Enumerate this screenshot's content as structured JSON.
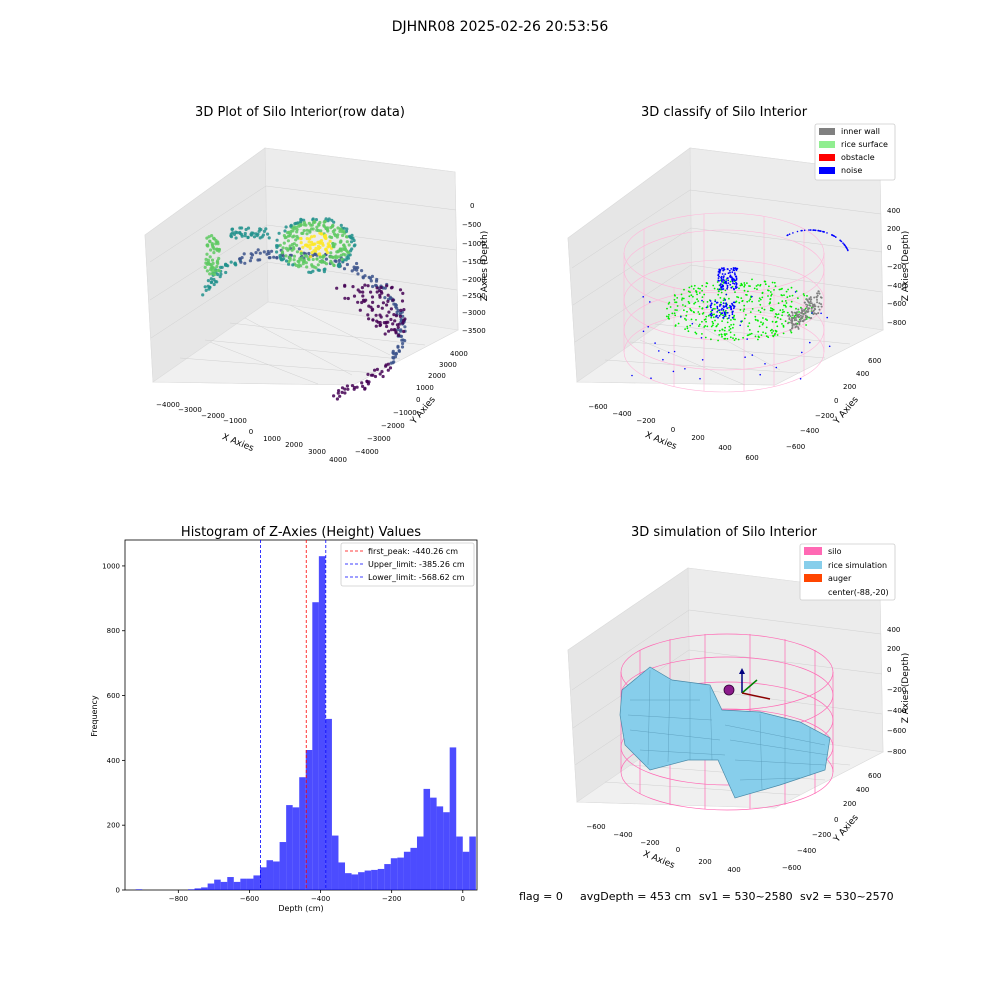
{
  "suptitle": "DJHNR08 2025-02-26 20:53:56",
  "footer": {
    "flag": "flag = 0",
    "avg_depth": "avgDepth = 453 cm",
    "sv1": "sv1 = 530~2580",
    "sv2": "sv2 = 530~2570"
  },
  "chart_data": [
    {
      "type": "scatter",
      "title": "3D Plot of Silo Interior(row data)",
      "xlabel": "X Axies",
      "ylabel": "Y Axies",
      "zlabel": "Z Axies (Depth)",
      "x_ticks": [
        "−4000",
        "−3000",
        "−2000",
        "−1000",
        "0",
        "1000",
        "2000",
        "3000",
        "4000"
      ],
      "y_ticks": [
        "−4000",
        "−3000",
        "−2000",
        "−1000",
        "0",
        "1000",
        "2000",
        "3000",
        "4000"
      ],
      "z_ticks": [
        "0",
        "−500",
        "−1000",
        "−1500",
        "−2000",
        "−2500",
        "−3000",
        "−3500"
      ],
      "xlim": [
        -4500,
        4500
      ],
      "ylim": [
        -4500,
        4500
      ],
      "zlim": [
        -3800,
        200
      ],
      "colormap": [
        "#440154",
        "#3b528b",
        "#21918c",
        "#5ec962",
        "#fde725"
      ]
    },
    {
      "type": "scatter",
      "title": "3D classify of Silo Interior",
      "xlabel": "X Axies",
      "ylabel": "Y Axies",
      "zlabel": "Z Axies (Depth)",
      "x_ticks": [
        "−600",
        "−400",
        "−200",
        "0",
        "200",
        "400",
        "600"
      ],
      "y_ticks": [
        "−600",
        "−400",
        "−200",
        "0",
        "200",
        "400",
        "600"
      ],
      "z_ticks": [
        "400",
        "200",
        "0",
        "−200",
        "−400",
        "−600",
        "−800"
      ],
      "xlim": [
        -700,
        700
      ],
      "ylim": [
        -700,
        700
      ],
      "zlim": [
        -900,
        450
      ],
      "legend": [
        {
          "label": "inner wall",
          "color": "#808080"
        },
        {
          "label": "rice surface",
          "color": "#90ee90"
        },
        {
          "label": "obstacle",
          "color": "#ff0000"
        },
        {
          "label": "noise",
          "color": "#0000ff"
        }
      ],
      "legend_position": "top-right"
    },
    {
      "type": "bar",
      "title": "Histogram of Z-Axies (Height) Values",
      "xlabel": "Depth (cm)",
      "ylabel": "Frequency",
      "xlim": [
        -950,
        40
      ],
      "ylim": [
        0,
        1080
      ],
      "x_ticks": [
        -800,
        -600,
        -400,
        -200,
        0
      ],
      "x_tick_labels": [
        "−800",
        "−600",
        "−400",
        "−200",
        "0"
      ],
      "y_ticks": [
        0,
        200,
        400,
        600,
        800,
        1000
      ],
      "bin_start": -920,
      "bin_width": 18.4,
      "values": [
        2,
        0,
        0,
        0,
        0,
        0,
        0,
        0,
        2,
        5,
        8,
        20,
        32,
        25,
        40,
        25,
        35,
        35,
        45,
        70,
        92,
        88,
        148,
        262,
        255,
        348,
        432,
        888,
        1030,
        528,
        168,
        85,
        52,
        48,
        55,
        60,
        62,
        65,
        80,
        98,
        100,
        118,
        130,
        165,
        312,
        285,
        258,
        240,
        440,
        165,
        118,
        165
      ],
      "bar_color": "#0000ff",
      "bar_alpha": 0.7,
      "vlines": [
        {
          "x": -440.26,
          "color": "#ff0000",
          "label": "first_peak: -440.26 cm"
        },
        {
          "x": -385.26,
          "color": "#0000ff",
          "label": "Upper_limit: -385.26 cm"
        },
        {
          "x": -568.62,
          "color": "#0000ff",
          "label": "Lower_limit: -568.62 cm"
        }
      ],
      "legend_position": "top-right"
    },
    {
      "type": "surface",
      "title": "3D simulation of Silo Interior",
      "xlabel": "X Axies",
      "ylabel": "Y Axies",
      "zlabel": "Z Axies (Depth)",
      "x_ticks": [
        "−600",
        "−400",
        "−200",
        "0",
        "200",
        "400"
      ],
      "y_ticks": [
        "−600",
        "−400",
        "−200",
        "0",
        "200",
        "400",
        "600"
      ],
      "z_ticks": [
        "400",
        "200",
        "0",
        "−200",
        "−400",
        "−600",
        "−800"
      ],
      "xlim": [
        -700,
        500
      ],
      "ylim": [
        -700,
        700
      ],
      "zlim": [
        -900,
        450
      ],
      "legend": [
        {
          "label": "silo",
          "color": "#ff69b4"
        },
        {
          "label": "rice simulation",
          "color": "#87ceeb"
        },
        {
          "label": "auger",
          "color": "#ff4500"
        },
        {
          "label": "center(-88,-20)",
          "color": "none"
        }
      ],
      "center": [
        -88,
        -20
      ],
      "legend_position": "top-right"
    }
  ]
}
